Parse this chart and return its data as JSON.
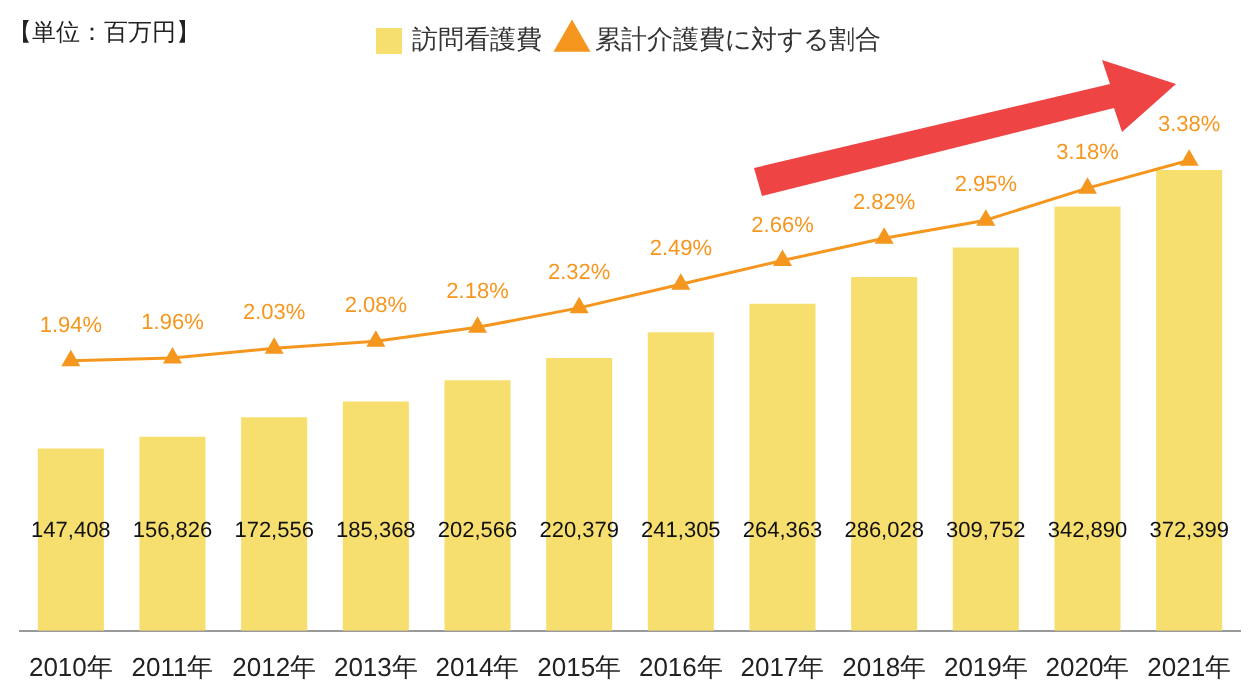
{
  "chart_data": {
    "type": "bar",
    "categories": [
      "2010年",
      "2011年",
      "2012年",
      "2013年",
      "2014年",
      "2015年",
      "2016年",
      "2017年",
      "2018年",
      "2019年",
      "2020年",
      "2021年"
    ],
    "series": [
      {
        "name": "訪問看護費",
        "color": "#f7df6f",
        "values": [
          147408,
          156826,
          172556,
          185368,
          202566,
          220379,
          241305,
          264363,
          286028,
          309752,
          342890,
          372399
        ],
        "value_labels": [
          "147,408",
          "156,826",
          "172,556",
          "185,368",
          "202,566",
          "220,379",
          "241,305",
          "264,363",
          "286,028",
          "309,752",
          "342,890",
          "372,399"
        ]
      },
      {
        "name": "累計介護費に対する割合",
        "type": "line",
        "axis": "y2",
        "color": "#f5961e",
        "marker": "triangle",
        "values": [
          1.94,
          1.96,
          2.03,
          2.08,
          2.18,
          2.32,
          2.49,
          2.66,
          2.82,
          2.95,
          3.18,
          3.38
        ],
        "value_labels": [
          "1.94%",
          "1.96%",
          "2.03%",
          "2.08%",
          "2.18%",
          "2.32%",
          "2.49%",
          "2.66%",
          "2.82%",
          "2.95%",
          "3.18%",
          "3.38%"
        ]
      }
    ],
    "annotations": [
      "【単位：百万円】"
    ],
    "legend": "top",
    "grid": false,
    "tick_labels": "x",
    "data_labels": true
  }
}
